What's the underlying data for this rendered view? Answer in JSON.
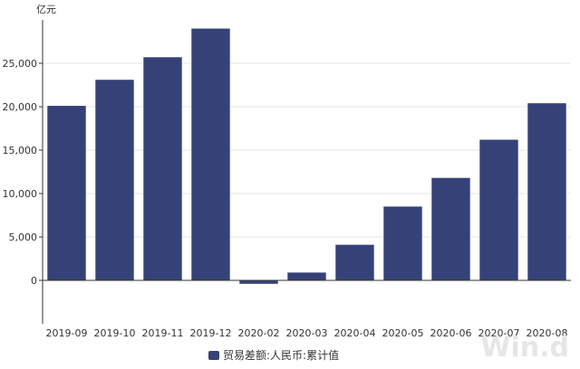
{
  "chart_data": {
    "type": "bar",
    "unit_label": "亿元",
    "categories": [
      "2019-09",
      "2019-10",
      "2019-11",
      "2019-12",
      "2020-02",
      "2020-03",
      "2020-04",
      "2020-05",
      "2020-06",
      "2020-07",
      "2020-08"
    ],
    "series": [
      {
        "name": "贸易差额:人民币:累计值",
        "values": [
          20100,
          23100,
          25700,
          29000,
          -400,
          900,
          4100,
          8500,
          11800,
          16200,
          20400
        ]
      }
    ],
    "y_ticks": [
      "0",
      "5,000",
      "10,000",
      "15,000",
      "20,000",
      "25,000"
    ],
    "ylim": [
      -5000,
      30000
    ],
    "grid": true,
    "legend_position": "bottom-center",
    "colors": {
      "bar": "#364277",
      "grid": "#e6e6e6",
      "axis": "#333333"
    }
  },
  "watermark": "Win.d"
}
